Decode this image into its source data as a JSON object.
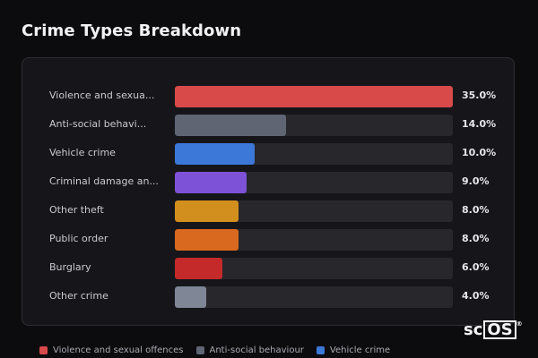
{
  "title": "Crime Types Breakdown",
  "chart_data": {
    "type": "bar",
    "orientation": "horizontal",
    "categories": [
      "Violence and sexua...",
      "Anti-social behavi...",
      "Vehicle crime",
      "Criminal damage an...",
      "Other theft",
      "Public order",
      "Burglary",
      "Other crime"
    ],
    "values": [
      35.0,
      14.0,
      10.0,
      9.0,
      8.0,
      8.0,
      6.0,
      4.0
    ],
    "value_labels": [
      "35.0%",
      "14.0%",
      "10.0%",
      "9.0%",
      "8.0%",
      "8.0%",
      "6.0%",
      "4.0%"
    ],
    "colors": [
      "#d84a4a",
      "#5f6573",
      "#3b78d8",
      "#7d52d6",
      "#d38f1d",
      "#d9691f",
      "#c42a2a",
      "#7f8796"
    ],
    "xlim": [
      0,
      35
    ]
  },
  "legend": [
    {
      "label": "Violence and sexual offences",
      "color": "#d84a4a"
    },
    {
      "label": "Anti-social behaviour",
      "color": "#5f6573"
    },
    {
      "label": "Vehicle crime",
      "color": "#3b78d8"
    }
  ],
  "logo": {
    "prefix": "sc",
    "boxed": "OS",
    "mark": "®"
  }
}
